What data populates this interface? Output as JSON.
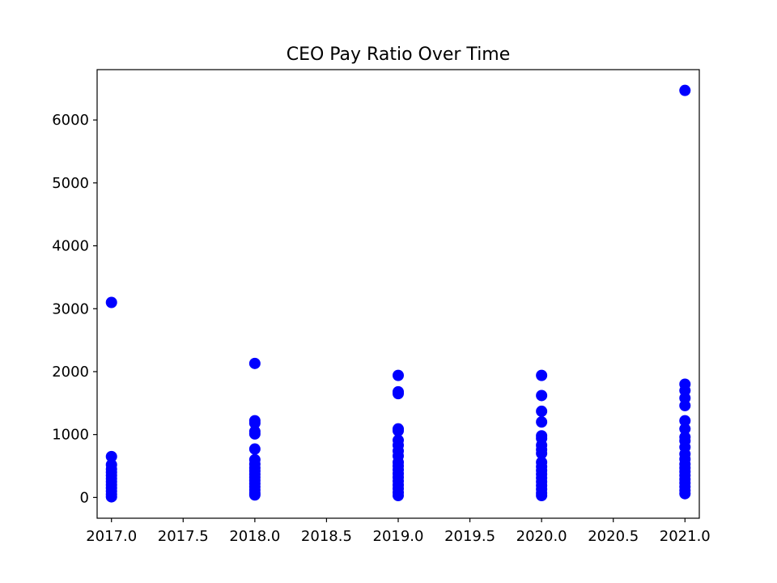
{
  "chart_data": {
    "type": "scatter",
    "title": "CEO Pay Ratio Over Time",
    "xlabel": "",
    "ylabel": "",
    "xlim": [
      2016.9,
      2021.1
    ],
    "ylim": [
      -330,
      6800
    ],
    "grid": false,
    "marker_color": "#0000ff",
    "x_ticks": [
      2017.0,
      2017.5,
      2018.0,
      2018.5,
      2019.0,
      2019.5,
      2020.0,
      2020.5,
      2021.0
    ],
    "x_tick_labels": [
      "2017.0",
      "2017.5",
      "2018.0",
      "2018.5",
      "2019.0",
      "2019.5",
      "2020.0",
      "2020.5",
      "2021.0"
    ],
    "y_ticks": [
      0,
      1000,
      2000,
      3000,
      4000,
      5000,
      6000
    ],
    "y_tick_labels": [
      "0",
      "1000",
      "2000",
      "3000",
      "4000",
      "5000",
      "6000"
    ],
    "points": [
      {
        "x": 2017,
        "y": 3100
      },
      {
        "x": 2017,
        "y": 650
      },
      {
        "x": 2017,
        "y": 520
      },
      {
        "x": 2017,
        "y": 450
      },
      {
        "x": 2017,
        "y": 400
      },
      {
        "x": 2017,
        "y": 350
      },
      {
        "x": 2017,
        "y": 300
      },
      {
        "x": 2017,
        "y": 250
      },
      {
        "x": 2017,
        "y": 200
      },
      {
        "x": 2017,
        "y": 150
      },
      {
        "x": 2017,
        "y": 100
      },
      {
        "x": 2017,
        "y": 50
      },
      {
        "x": 2017,
        "y": 10
      },
      {
        "x": 2018,
        "y": 2130
      },
      {
        "x": 2018,
        "y": 1220
      },
      {
        "x": 2018,
        "y": 1180
      },
      {
        "x": 2018,
        "y": 1050
      },
      {
        "x": 2018,
        "y": 1010
      },
      {
        "x": 2018,
        "y": 770
      },
      {
        "x": 2018,
        "y": 600
      },
      {
        "x": 2018,
        "y": 530
      },
      {
        "x": 2018,
        "y": 470
      },
      {
        "x": 2018,
        "y": 420
      },
      {
        "x": 2018,
        "y": 370
      },
      {
        "x": 2018,
        "y": 320
      },
      {
        "x": 2018,
        "y": 270
      },
      {
        "x": 2018,
        "y": 220
      },
      {
        "x": 2018,
        "y": 170
      },
      {
        "x": 2018,
        "y": 120
      },
      {
        "x": 2018,
        "y": 70
      },
      {
        "x": 2018,
        "y": 40
      },
      {
        "x": 2019,
        "y": 1940
      },
      {
        "x": 2019,
        "y": 1680
      },
      {
        "x": 2019,
        "y": 1650
      },
      {
        "x": 2019,
        "y": 1090
      },
      {
        "x": 2019,
        "y": 1060
      },
      {
        "x": 2019,
        "y": 910
      },
      {
        "x": 2019,
        "y": 830
      },
      {
        "x": 2019,
        "y": 740
      },
      {
        "x": 2019,
        "y": 660
      },
      {
        "x": 2019,
        "y": 560
      },
      {
        "x": 2019,
        "y": 500
      },
      {
        "x": 2019,
        "y": 440
      },
      {
        "x": 2019,
        "y": 380
      },
      {
        "x": 2019,
        "y": 320
      },
      {
        "x": 2019,
        "y": 260
      },
      {
        "x": 2019,
        "y": 200
      },
      {
        "x": 2019,
        "y": 140
      },
      {
        "x": 2019,
        "y": 80
      },
      {
        "x": 2019,
        "y": 30
      },
      {
        "x": 2020,
        "y": 1940
      },
      {
        "x": 2020,
        "y": 1620
      },
      {
        "x": 2020,
        "y": 1370
      },
      {
        "x": 2020,
        "y": 1200
      },
      {
        "x": 2020,
        "y": 980
      },
      {
        "x": 2020,
        "y": 940
      },
      {
        "x": 2020,
        "y": 830
      },
      {
        "x": 2020,
        "y": 760
      },
      {
        "x": 2020,
        "y": 700
      },
      {
        "x": 2020,
        "y": 560
      },
      {
        "x": 2020,
        "y": 490
      },
      {
        "x": 2020,
        "y": 430
      },
      {
        "x": 2020,
        "y": 370
      },
      {
        "x": 2020,
        "y": 310
      },
      {
        "x": 2020,
        "y": 250
      },
      {
        "x": 2020,
        "y": 190
      },
      {
        "x": 2020,
        "y": 130
      },
      {
        "x": 2020,
        "y": 70
      },
      {
        "x": 2020,
        "y": 30
      },
      {
        "x": 2021,
        "y": 6470
      },
      {
        "x": 2021,
        "y": 1800
      },
      {
        "x": 2021,
        "y": 1700
      },
      {
        "x": 2021,
        "y": 1580
      },
      {
        "x": 2021,
        "y": 1460
      },
      {
        "x": 2021,
        "y": 1220
      },
      {
        "x": 2021,
        "y": 1090
      },
      {
        "x": 2021,
        "y": 960
      },
      {
        "x": 2021,
        "y": 900
      },
      {
        "x": 2021,
        "y": 800
      },
      {
        "x": 2021,
        "y": 690
      },
      {
        "x": 2021,
        "y": 610
      },
      {
        "x": 2021,
        "y": 530
      },
      {
        "x": 2021,
        "y": 470
      },
      {
        "x": 2021,
        "y": 410
      },
      {
        "x": 2021,
        "y": 350
      },
      {
        "x": 2021,
        "y": 290
      },
      {
        "x": 2021,
        "y": 230
      },
      {
        "x": 2021,
        "y": 170
      },
      {
        "x": 2021,
        "y": 110
      },
      {
        "x": 2021,
        "y": 60
      }
    ]
  }
}
